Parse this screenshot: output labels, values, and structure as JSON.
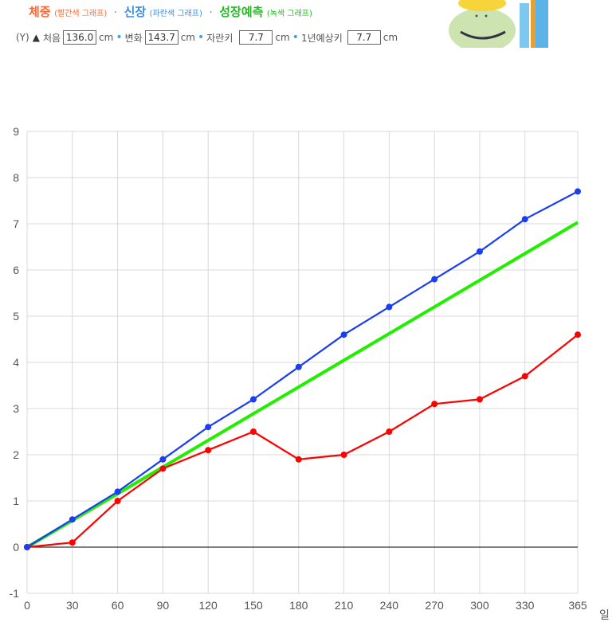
{
  "header": {
    "weight_title": "체중",
    "weight_sub": "(빨간색 그래프)",
    "height_title": "신장",
    "height_sub": "(파란색 그래프)",
    "growth_title": "성장예측",
    "growth_sub": "(녹색 그래프)",
    "separator": "·",
    "y_label": "(Y)",
    "first_label": "처음",
    "first_value": "136.0",
    "unit": "cm",
    "change_label": "변화",
    "change_value": "143.7",
    "grown_label": "자란키",
    "grown_value": "7.7",
    "predict_label": "1년예상키",
    "predict_value": "7.7",
    "colors": {
      "weight": "#ff6633",
      "height": "#3a8ee6",
      "growth": "#22bb22"
    }
  },
  "chart_data": {
    "type": "line",
    "x": [
      0,
      30,
      60,
      90,
      120,
      150,
      180,
      210,
      240,
      270,
      300,
      330,
      365
    ],
    "xlabel": "일",
    "ylim": [
      -1,
      9
    ],
    "yticks": [
      -1,
      0,
      1,
      2,
      3,
      4,
      5,
      6,
      7,
      8,
      9
    ],
    "grid": true,
    "series": [
      {
        "color": "#1a3ef0",
        "markers": true,
        "values": [
          0,
          0.6,
          1.2,
          1.9,
          2.6,
          3.2,
          3.9,
          4.6,
          5.2,
          5.8,
          6.4,
          7.1,
          7.7
        ]
      },
      {
        "color": "#ff0000",
        "markers": true,
        "values": [
          0,
          0.1,
          1.0,
          1.7,
          2.1,
          2.5,
          1.9,
          2.0,
          2.5,
          3.1,
          3.2,
          3.7,
          4.6
        ]
      },
      {
        "color": "#22ee00",
        "markers": false,
        "x": [
          0,
          365
        ],
        "values": [
          0,
          7.03
        ]
      }
    ]
  }
}
